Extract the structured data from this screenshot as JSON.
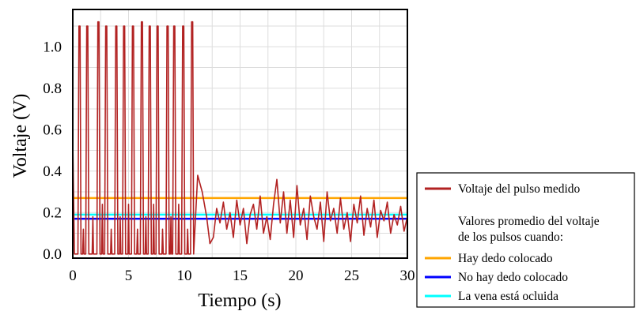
{
  "chart_data": {
    "type": "line",
    "xlabel": "Tiempo (s)",
    "ylabel": "Voltaje (V)",
    "xlim": [
      0,
      30
    ],
    "ylim": [
      -0.02,
      1.18
    ],
    "x_ticks": [
      "0",
      "5",
      "10",
      "15",
      "20",
      "25",
      "30"
    ],
    "x_tick_values": [
      0,
      5,
      10,
      15,
      20,
      25,
      30
    ],
    "y_ticks": [
      "0.0",
      "0.2",
      "0.4",
      "0.6",
      "0.8",
      "1.0"
    ],
    "y_tick_values": [
      0.0,
      0.2,
      0.4,
      0.6,
      0.8,
      1.0
    ],
    "grid": true,
    "legend_position": "right, outside plot area",
    "series": [
      {
        "name": "Voltaje del pulso medido",
        "color": "#b22222",
        "pulses_phase": {
          "x_range": [
            0,
            11.2
          ],
          "baseline": 0.0,
          "peak_times": [
            0.6,
            1.3,
            2.3,
            3.0,
            3.9,
            4.6,
            5.4,
            6.2,
            6.9,
            7.6,
            8.5,
            9.1,
            9.9,
            10.7
          ],
          "peak_values": [
            1.1,
            1.1,
            1.12,
            1.1,
            1.1,
            1.1,
            1.1,
            1.12,
            1.1,
            1.1,
            1.1,
            1.1,
            1.1,
            1.12
          ]
        },
        "noise_phase": {
          "x": [
            11.2,
            11.6,
            12.0,
            12.3,
            12.6,
            12.9,
            13.2,
            13.5,
            13.8,
            14.1,
            14.4,
            14.7,
            15.0,
            15.3,
            15.6,
            15.9,
            16.2,
            16.5,
            16.8,
            17.1,
            17.4,
            17.7,
            18.0,
            18.3,
            18.6,
            18.9,
            19.2,
            19.5,
            19.8,
            20.1,
            20.4,
            20.7,
            21.0,
            21.3,
            21.6,
            21.9,
            22.2,
            22.5,
            22.8,
            23.1,
            23.4,
            23.7,
            24.0,
            24.3,
            24.6,
            24.9,
            25.2,
            25.5,
            25.8,
            26.1,
            26.4,
            26.7,
            27.0,
            27.3,
            27.6,
            27.9,
            28.2,
            28.5,
            28.8,
            29.1,
            29.4,
            29.7,
            30.0
          ],
          "y": [
            0.38,
            0.3,
            0.18,
            0.05,
            0.08,
            0.22,
            0.15,
            0.25,
            0.12,
            0.2,
            0.08,
            0.26,
            0.14,
            0.22,
            0.05,
            0.19,
            0.24,
            0.12,
            0.28,
            0.1,
            0.18,
            0.07,
            0.24,
            0.36,
            0.15,
            0.3,
            0.1,
            0.26,
            0.08,
            0.33,
            0.14,
            0.22,
            0.07,
            0.28,
            0.18,
            0.12,
            0.25,
            0.06,
            0.3,
            0.16,
            0.22,
            0.1,
            0.27,
            0.12,
            0.2,
            0.06,
            0.24,
            0.15,
            0.28,
            0.09,
            0.22,
            0.13,
            0.26,
            0.08,
            0.21,
            0.16,
            0.25,
            0.1,
            0.19,
            0.14,
            0.23,
            0.11,
            0.18
          ]
        }
      },
      {
        "name": "Hay dedo colocado",
        "color": "#ffa500",
        "y": 0.27
      },
      {
        "name": "No hay dedo colocado",
        "color": "#0000ff",
        "y": 0.17
      },
      {
        "name": "La vena está ocluida",
        "color": "#00ffff",
        "y": 0.19
      }
    ],
    "legend_note": [
      "Valores promedio del voltaje",
      "de los pulsos cuando:"
    ]
  }
}
